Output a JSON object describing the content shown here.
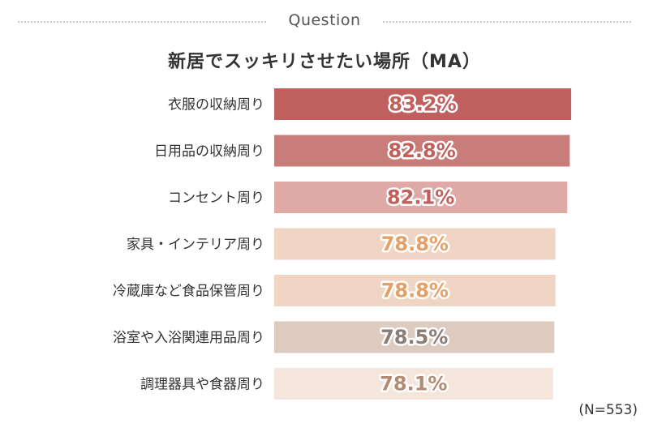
{
  "header": {
    "label": "Question"
  },
  "chart_data": {
    "type": "bar",
    "orientation": "horizontal",
    "title": "新居でスッキリさせたい場所（MA）",
    "categories": [
      "衣服の収納周り",
      "日用品の収納周り",
      "コンセント周り",
      "家具・インテリア周り",
      "冷蔵庫など食品保管周り",
      "浴室や入浴関連用品周り",
      "調理器具や食器周り"
    ],
    "values": [
      83.2,
      82.8,
      82.1,
      78.8,
      78.8,
      78.5,
      78.1
    ],
    "value_labels": [
      "83.2%",
      "82.8%",
      "82.1%",
      "78.8%",
      "78.8%",
      "78.5%",
      "78.1%"
    ],
    "bar_colors": [
      "#c0605e",
      "#c97d7b",
      "#dfaaa6",
      "#f0d5c5",
      "#f0d5c5",
      "#ddcbbf",
      "#f5e6dd"
    ],
    "label_colors": [
      "#c0605e",
      "#c0605e",
      "#c0605e",
      "#e3a067",
      "#e3a067",
      "#8a7d76",
      "#b58a72"
    ],
    "xlabel": "",
    "ylabel": ""
  },
  "footnote": "(N=553)"
}
